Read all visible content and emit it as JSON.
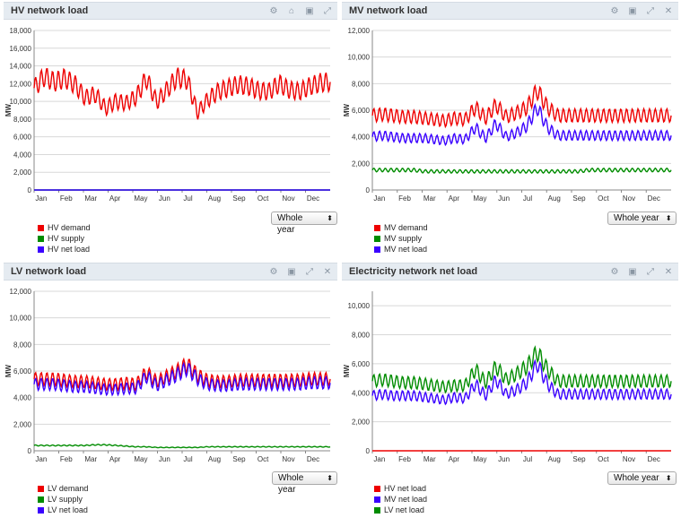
{
  "months": [
    "Jan",
    "Feb",
    "Mar",
    "Apr",
    "May",
    "Jun",
    "Jul",
    "Aug",
    "Sep",
    "Oct",
    "Nov",
    "Dec"
  ],
  "colors": {
    "red": "#ee0000",
    "green": "#008c00",
    "blue": "#3a00ff"
  },
  "panels": [
    {
      "title": "HV network load",
      "icons": [
        "gears-icon",
        "home-icon",
        "lock-icon",
        "expand-icon"
      ],
      "select_label": "Whole year",
      "legend": [
        {
          "label": "HV demand",
          "color": "#ee0000"
        },
        {
          "label": "HV supply",
          "color": "#008c00"
        },
        {
          "label": "HV net load",
          "color": "#3a00ff"
        }
      ]
    },
    {
      "title": "MV network load",
      "icons": [
        "gears-icon",
        "lock-icon",
        "expand-icon",
        "close-icon"
      ],
      "select_label": "Whole year",
      "legend": [
        {
          "label": "MV demand",
          "color": "#ee0000"
        },
        {
          "label": "MV supply",
          "color": "#008c00"
        },
        {
          "label": "MV net load",
          "color": "#3a00ff"
        }
      ]
    },
    {
      "title": "LV network load",
      "icons": [
        "gears-icon",
        "lock-icon",
        "expand-icon",
        "close-icon"
      ],
      "select_label": "Whole year",
      "legend": [
        {
          "label": "LV demand",
          "color": "#ee0000"
        },
        {
          "label": "LV supply",
          "color": "#008c00"
        },
        {
          "label": "LV net load",
          "color": "#3a00ff"
        }
      ]
    },
    {
      "title": "Electricity network net load",
      "icons": [
        "gears-icon",
        "lock-icon",
        "expand-icon",
        "close-icon"
      ],
      "select_label": "Whole year",
      "legend": [
        {
          "label": "HV net load",
          "color": "#ee0000"
        },
        {
          "label": "MV net load",
          "color": "#3a00ff"
        },
        {
          "label": "LV net load",
          "color": "#008c00"
        }
      ]
    }
  ],
  "chart_data": [
    {
      "type": "line",
      "title": "HV network load",
      "ylabel": "MW",
      "xlabel": "",
      "ylim": [
        0,
        18000
      ],
      "yticks": [
        0,
        2000,
        4000,
        6000,
        8000,
        10000,
        12000,
        14000,
        16000,
        18000
      ],
      "xticks": [
        "Jan",
        "Feb",
        "Mar",
        "Apr",
        "May",
        "Jun",
        "Jul",
        "Aug",
        "Sep",
        "Oct",
        "Nov",
        "Dec"
      ],
      "grid": true,
      "legend_position": "bottom-left",
      "series": [
        {
          "name": "HV demand",
          "color": "#ee0000",
          "values": [
            11500,
            12800,
            12200,
            12600,
            11900,
            10400,
            10800,
            9200,
            10000,
            9800,
            10500,
            12600,
            9900,
            11300,
            12700,
            12400,
            8700,
            10200,
            11100,
            11500,
            11900,
            11700,
            11200,
            11100,
            12000,
            11300,
            11100,
            11700,
            12100,
            12200
          ]
        },
        {
          "name": "HV supply",
          "color": "#008c00",
          "values": [
            0,
            0,
            0,
            0,
            0,
            0,
            0,
            0,
            0,
            0,
            0,
            0,
            0,
            0,
            0,
            0,
            0,
            0,
            0,
            0,
            0,
            0,
            0,
            0,
            0,
            0,
            0,
            0,
            0,
            0
          ]
        },
        {
          "name": "HV net load",
          "color": "#3a00ff",
          "values": [
            0,
            0,
            0,
            0,
            0,
            0,
            0,
            0,
            0,
            0,
            0,
            0,
            0,
            0,
            0,
            0,
            0,
            0,
            0,
            0,
            0,
            0,
            0,
            0,
            0,
            0,
            0,
            0,
            0,
            0
          ]
        }
      ]
    },
    {
      "type": "line",
      "title": "MV network load",
      "ylabel": "MW",
      "xlabel": "",
      "ylim": [
        0,
        12000
      ],
      "yticks": [
        0,
        2000,
        4000,
        6000,
        8000,
        10000,
        12000
      ],
      "xticks": [
        "Jan",
        "Feb",
        "Mar",
        "Apr",
        "May",
        "Jun",
        "Jul",
        "Aug",
        "Sep",
        "Oct",
        "Nov",
        "Dec"
      ],
      "grid": true,
      "legend_position": "bottom-left",
      "series": [
        {
          "name": "MV demand",
          "color": "#ee0000",
          "values": [
            5600,
            5700,
            5600,
            5500,
            5500,
            5400,
            5300,
            5200,
            5400,
            5300,
            6200,
            5400,
            6400,
            5500,
            5800,
            6200,
            7500,
            6200,
            5600,
            5600,
            5600,
            5600,
            5600,
            5600,
            5600,
            5600,
            5600,
            5600,
            5600,
            5600
          ]
        },
        {
          "name": "MV supply",
          "color": "#008c00",
          "values": [
            1500,
            1500,
            1500,
            1500,
            1500,
            1400,
            1400,
            1400,
            1400,
            1400,
            1400,
            1400,
            1400,
            1400,
            1400,
            1400,
            1400,
            1400,
            1400,
            1400,
            1400,
            1500,
            1500,
            1500,
            1500,
            1500,
            1500,
            1500,
            1500,
            1500
          ]
        },
        {
          "name": "MV net load",
          "color": "#3a00ff",
          "values": [
            4000,
            4100,
            4000,
            3900,
            3900,
            3900,
            3800,
            3700,
            3900,
            3800,
            4700,
            3900,
            5000,
            4000,
            4300,
            4800,
            6200,
            4700,
            4100,
            4100,
            4100,
            4100,
            4100,
            4100,
            4100,
            4100,
            4100,
            4100,
            4100,
            4100
          ]
        }
      ]
    },
    {
      "type": "line",
      "title": "LV network load",
      "ylabel": "MW",
      "xlabel": "",
      "ylim": [
        0,
        12000
      ],
      "yticks": [
        0,
        2000,
        4000,
        6000,
        8000,
        10000,
        12000
      ],
      "xticks": [
        "Jan",
        "Feb",
        "Mar",
        "Apr",
        "May",
        "Jun",
        "Jul",
        "Aug",
        "Sep",
        "Oct",
        "Nov",
        "Dec"
      ],
      "grid": true,
      "legend_position": "bottom-left",
      "series": [
        {
          "name": "LV demand",
          "color": "#ee0000",
          "values": [
            5400,
            5400,
            5400,
            5300,
            5200,
            5200,
            5100,
            5000,
            5000,
            5100,
            5000,
            5900,
            5200,
            5600,
            6000,
            6500,
            5700,
            5300,
            5200,
            5200,
            5300,
            5300,
            5300,
            5300,
            5300,
            5300,
            5300,
            5400,
            5400,
            5400
          ]
        },
        {
          "name": "LV supply",
          "color": "#008c00",
          "values": [
            400,
            400,
            400,
            400,
            400,
            400,
            450,
            450,
            400,
            350,
            300,
            300,
            250,
            250,
            250,
            250,
            250,
            300,
            300,
            300,
            300,
            300,
            300,
            300,
            300,
            300,
            300,
            300,
            300,
            300
          ]
        },
        {
          "name": "LV net load",
          "color": "#3a00ff",
          "values": [
            5000,
            5000,
            5000,
            4900,
            4800,
            4800,
            4700,
            4600,
            4600,
            4700,
            4700,
            5600,
            4900,
            5300,
            5700,
            6200,
            5400,
            5000,
            4900,
            4900,
            5000,
            5000,
            5000,
            5000,
            5000,
            5000,
            5000,
            5100,
            5100,
            5100
          ]
        }
      ]
    },
    {
      "type": "line",
      "title": "Electricity network net load",
      "ylabel": "MW",
      "xlabel": "",
      "ylim": [
        0,
        11000
      ],
      "yticks": [
        0,
        2000,
        4000,
        6000,
        8000,
        10000
      ],
      "xticks": [
        "Jan",
        "Feb",
        "Mar",
        "Apr",
        "May",
        "Jun",
        "Jul",
        "Aug",
        "Sep",
        "Oct",
        "Nov",
        "Dec"
      ],
      "grid": true,
      "legend_position": "bottom-left",
      "series": [
        {
          "name": "HV net load",
          "color": "#ee0000",
          "values": [
            0,
            0,
            0,
            0,
            0,
            0,
            0,
            0,
            0,
            0,
            0,
            0,
            0,
            0,
            0,
            0,
            0,
            0,
            0,
            0,
            0,
            0,
            0,
            0,
            0,
            0,
            0,
            0,
            0,
            0
          ]
        },
        {
          "name": "MV net load",
          "color": "#3a00ff",
          "values": [
            3800,
            3900,
            3800,
            3800,
            3800,
            3700,
            3600,
            3500,
            3700,
            3600,
            4600,
            3800,
            4900,
            3900,
            4200,
            4700,
            6000,
            4600,
            3900,
            3900,
            3900,
            3900,
            3900,
            3900,
            3900,
            3900,
            3900,
            3900,
            3900,
            3900
          ]
        },
        {
          "name": "LV net load",
          "color": "#008c00",
          "values": [
            4800,
            4900,
            4800,
            4700,
            4700,
            4600,
            4500,
            4400,
            4500,
            4500,
            5600,
            4700,
            5800,
            4900,
            5300,
            5800,
            6800,
            5600,
            4800,
            4800,
            4800,
            4800,
            4800,
            4800,
            4800,
            4800,
            4800,
            4800,
            4800,
            4800
          ]
        }
      ]
    }
  ]
}
